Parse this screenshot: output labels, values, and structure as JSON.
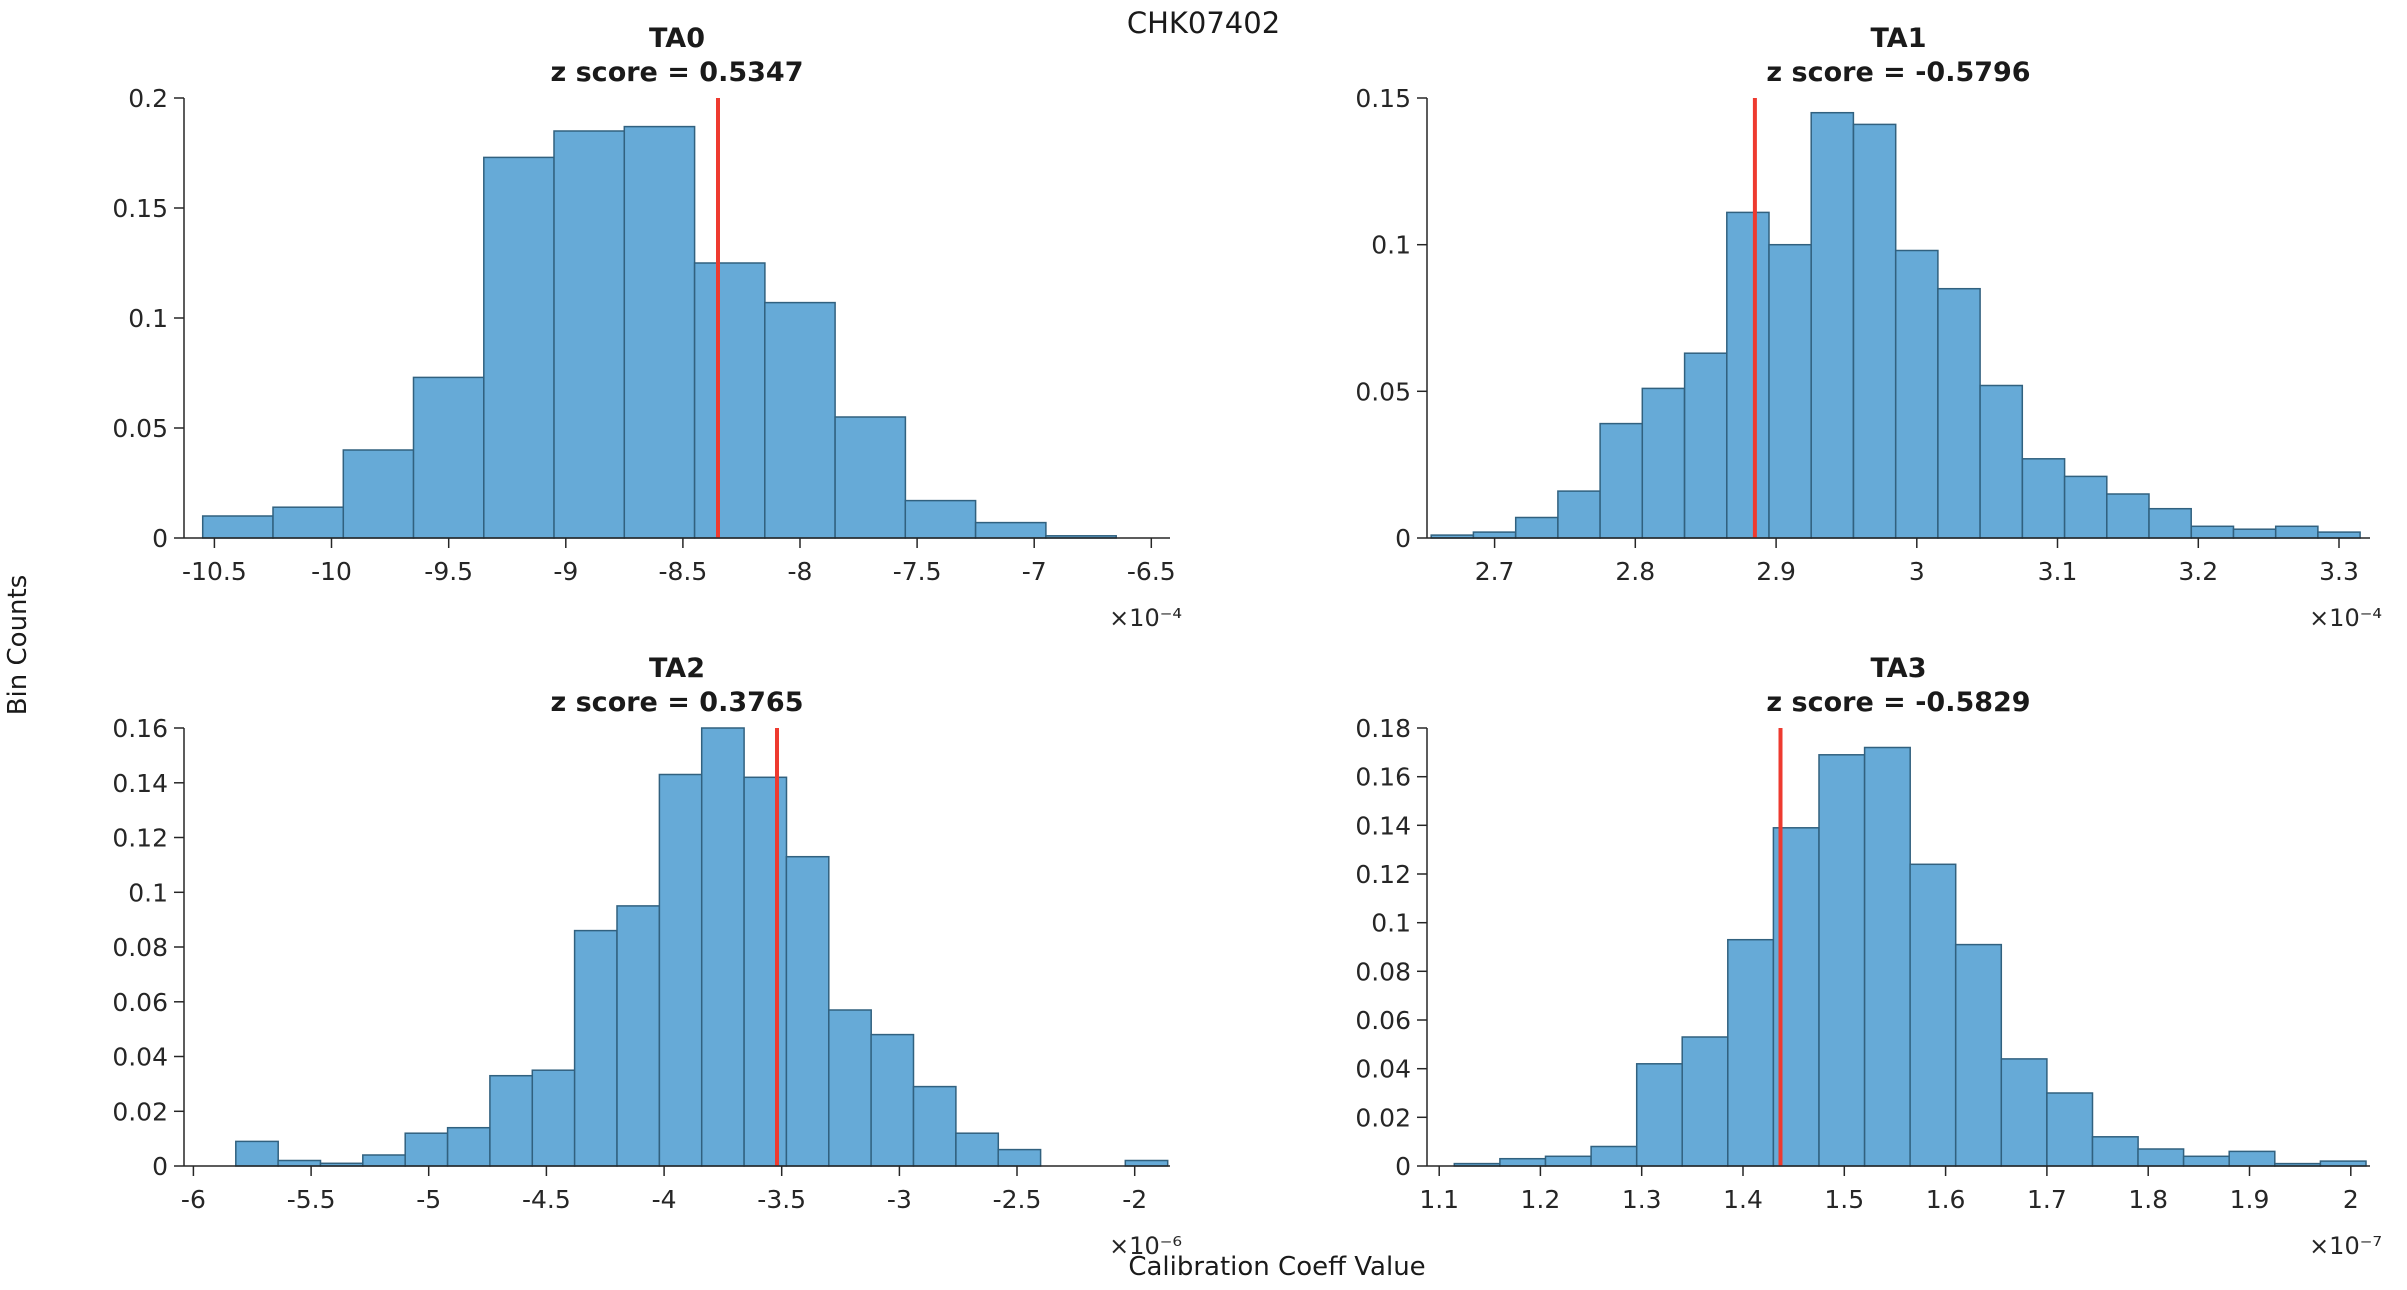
{
  "figure": {
    "title": "CHK07402",
    "xlabel": "Calibration Coeff Value",
    "ylabel": "Bin Counts"
  },
  "colors": {
    "bar_fill": "#66aad7",
    "bar_edge": "#31617f",
    "red_line": "#ee3a2f",
    "axis": "#262626",
    "background": "#ffffff"
  },
  "chart_data": [
    {
      "type": "bar",
      "chart_kind": "histogram",
      "title": "TA0",
      "subtitle": "z score = 0.5347",
      "z_score": 0.5347,
      "x_scale_label": "×10⁻⁴",
      "xlim": [
        -10.63,
        -6.42
      ],
      "ylim": [
        0,
        0.2
      ],
      "bin_start": -10.55,
      "bin_width": 0.3,
      "bin_counts": [
        0.01,
        0.014,
        0.04,
        0.073,
        0.173,
        0.185,
        0.187,
        0.125,
        0.107,
        0.055,
        0.017,
        0.007,
        0.001
      ],
      "red_line_x": -8.35,
      "xtick_values": [
        -10.5,
        -10,
        -9.5,
        -9,
        -8.5,
        -8,
        -7.5,
        -7,
        -6.5
      ],
      "xtick_labels": [
        "-10.5",
        "-10",
        "-9.5",
        "-9",
        "-8.5",
        "-8",
        "-7.5",
        "-7",
        "-6.5"
      ],
      "ytick_values": [
        0,
        0.05,
        0.1,
        0.15,
        0.2
      ],
      "ytick_labels": [
        "0",
        "0.05",
        "0.1",
        "0.15",
        "0.2"
      ],
      "legend": "off",
      "grid": "off"
    },
    {
      "type": "bar",
      "chart_kind": "histogram",
      "title": "TA1",
      "subtitle": "z score = -0.5796",
      "z_score": -0.5796,
      "x_scale_label": "×10⁻⁴",
      "xlim": [
        2.652,
        3.322
      ],
      "ylim": [
        0,
        0.15
      ],
      "bin_start": 2.655,
      "bin_width": 0.03,
      "bin_counts": [
        0.001,
        0.002,
        0.007,
        0.016,
        0.039,
        0.051,
        0.063,
        0.111,
        0.1,
        0.145,
        0.141,
        0.098,
        0.085,
        0.052,
        0.027,
        0.021,
        0.015,
        0.01,
        0.004,
        0.003,
        0.004,
        0.002
      ],
      "red_line_x": 2.885,
      "xtick_values": [
        2.7,
        2.8,
        2.9,
        3,
        3.1,
        3.2,
        3.3
      ],
      "xtick_labels": [
        "2.7",
        "2.8",
        "2.9",
        "3",
        "3.1",
        "3.2",
        "3.3"
      ],
      "ytick_values": [
        0,
        0.05,
        0.1,
        0.15
      ],
      "ytick_labels": [
        "0",
        "0.05",
        "0.1",
        "0.15"
      ],
      "legend": "off",
      "grid": "off"
    },
    {
      "type": "bar",
      "chart_kind": "histogram",
      "title": "TA2",
      "subtitle": "z score = 0.3765",
      "z_score": 0.3765,
      "x_scale_label": "×10⁻⁶",
      "xlim": [
        -6.04,
        -1.85
      ],
      "ylim": [
        0,
        0.16
      ],
      "bin_start": -5.82,
      "bin_width": 0.18,
      "bin_counts": [
        0.009,
        0.002,
        0.001,
        0.004,
        0.012,
        0.014,
        0.033,
        0.035,
        0.086,
        0.095,
        0.143,
        0.16,
        0.142,
        0.113,
        0.057,
        0.048,
        0.029,
        0.012,
        0.006,
        0,
        0,
        0.002
      ],
      "red_line_x": -3.52,
      "xtick_values": [
        -6,
        -5.5,
        -5,
        -4.5,
        -4,
        -3.5,
        -3,
        -2.5,
        -2
      ],
      "xtick_labels": [
        "-6",
        "-5.5",
        "-5",
        "-4.5",
        "-4",
        "-3.5",
        "-3",
        "-2.5",
        "-2"
      ],
      "ytick_values": [
        0,
        0.02,
        0.04,
        0.06,
        0.08,
        0.1,
        0.12,
        0.14,
        0.16
      ],
      "ytick_labels": [
        "0",
        "0.02",
        "0.04",
        "0.06",
        "0.08",
        "0.1",
        "0.12",
        "0.14",
        "0.16"
      ],
      "legend": "off",
      "grid": "off"
    },
    {
      "type": "bar",
      "chart_kind": "histogram",
      "title": "TA3",
      "subtitle": "z score = -0.5829",
      "z_score": -0.5829,
      "x_scale_label": "×10⁻⁷",
      "xlim": [
        1.088,
        2.019
      ],
      "ylim": [
        0,
        0.18
      ],
      "bin_start": 1.115,
      "bin_width": 0.045,
      "bin_counts": [
        0.001,
        0.003,
        0.004,
        0.008,
        0.042,
        0.053,
        0.093,
        0.139,
        0.169,
        0.172,
        0.124,
        0.091,
        0.044,
        0.03,
        0.012,
        0.007,
        0.004,
        0.006,
        0.001,
        0.002
      ],
      "red_line_x": 1.437,
      "xtick_values": [
        1.1,
        1.2,
        1.3,
        1.4,
        1.5,
        1.6,
        1.7,
        1.8,
        1.9,
        2
      ],
      "xtick_labels": [
        "1.1",
        "1.2",
        "1.3",
        "1.4",
        "1.5",
        "1.6",
        "1.7",
        "1.8",
        "1.9",
        "2"
      ],
      "ytick_values": [
        0,
        0.02,
        0.04,
        0.06,
        0.08,
        0.1,
        0.12,
        0.14,
        0.16,
        0.18
      ],
      "ytick_labels": [
        "0",
        "0.02",
        "0.04",
        "0.06",
        "0.08",
        "0.1",
        "0.12",
        "0.14",
        "0.16",
        "0.18"
      ],
      "legend": "off",
      "grid": "off"
    }
  ]
}
